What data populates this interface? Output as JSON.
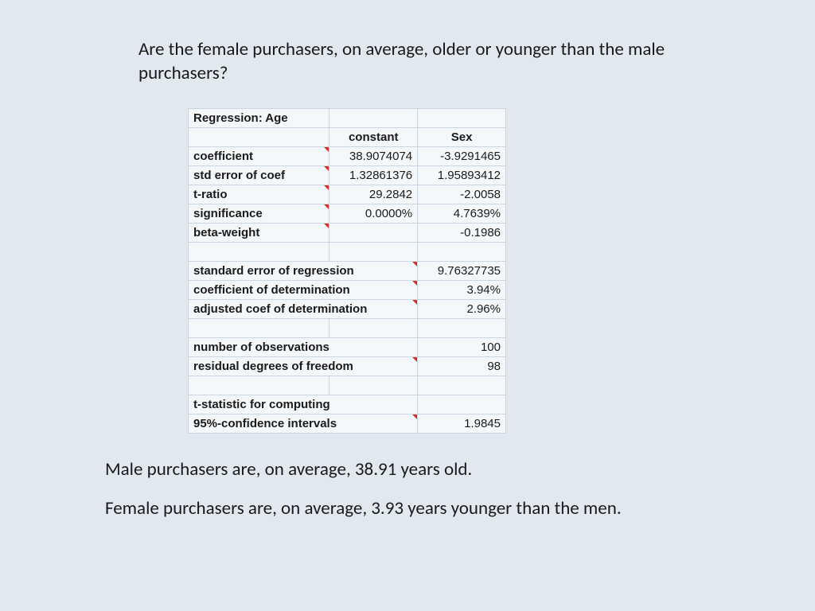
{
  "question": "Are the female purchasers, on average, older or younger than the male purchasers?",
  "table": {
    "title": "Regression: Age",
    "headers": {
      "col1": "constant",
      "col2": "Sex"
    },
    "rows_top": [
      {
        "label": "coefficient",
        "c1": "38.9074074",
        "c2": "-3.9291465",
        "flag": true
      },
      {
        "label": "std error of coef",
        "c1": "1.32861376",
        "c2": "1.95893412",
        "flag": true
      },
      {
        "label": "t-ratio",
        "c1": "29.2842",
        "c2": "-2.0058",
        "flag": true
      },
      {
        "label": "significance",
        "c1": "0.0000%",
        "c2": "4.7639%",
        "flag": true
      },
      {
        "label": "beta-weight",
        "c1": "",
        "c2": "-0.1986",
        "flag": true
      }
    ],
    "rows_span": [
      {
        "label": "standard error of regression",
        "val": "9.76327735",
        "flag": true
      },
      {
        "label": "coefficient of determination",
        "val": "3.94%",
        "flag": true
      },
      {
        "label": "adjusted coef of determination",
        "val": "2.96%",
        "flag": true
      }
    ],
    "rows_obs": [
      {
        "label": "number of observations",
        "val": "100",
        "flag": false
      },
      {
        "label": "residual degrees of freedom",
        "val": "98",
        "flag": true
      }
    ],
    "rows_tail": [
      {
        "label": "t-statistic for computing",
        "val": "",
        "flag": false
      },
      {
        "label": "95%-confidence intervals",
        "val": "1.9845",
        "flag": true
      }
    ]
  },
  "conclusion": {
    "line1": "Male purchasers are, on average, 38.91 years old.",
    "line2": "Female purchasers are, on average, 3.93 years younger than the men."
  },
  "colors": {
    "page_bg": "#e1e8f0",
    "cell_border": "#c9d6e4",
    "cell_bg": "#f5f8fb",
    "flag": "#d93025",
    "text": "#1a1a1a"
  },
  "fonts": {
    "body": "Calibri",
    "table": "Arial",
    "question_size_pt": 18,
    "table_size_pt": 11
  }
}
